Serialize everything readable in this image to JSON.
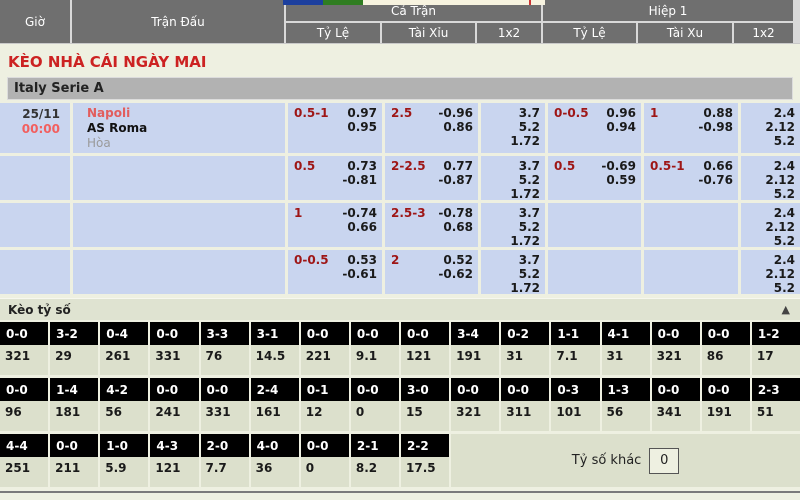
{
  "page_title": "KÈO NHÀ CÁI NGÀY MAI",
  "league": "Italy Serie A",
  "header": {
    "col_time": "Giờ",
    "col_match": "Trận Đấu",
    "group_full": "Cả Trận",
    "group_half": "Hiệp 1",
    "full_subcols": [
      "Tỷ Lệ",
      "Tài Xỉu",
      "1x2"
    ],
    "half_subcols": [
      "Tỷ Lệ",
      "Tài Xu",
      "1x2"
    ]
  },
  "odds_rows": [
    {
      "time_top": "25/11",
      "time_bottom": "00:00",
      "teams": {
        "home": "Napoli",
        "away": "AS Roma",
        "draw": "Hòa"
      },
      "ft_handicap": {
        "hc": "0.5-1",
        "odds": [
          "0.97",
          "0.95"
        ]
      },
      "ft_overunder": {
        "hc": "2.5",
        "odds": [
          "-0.96",
          "0.86"
        ]
      },
      "ft_1x2": [
        "3.7",
        "5.2",
        "1.72"
      ],
      "h1_handicap": {
        "hc": "0-0.5",
        "odds": [
          "0.96",
          "0.94"
        ]
      },
      "h1_overunder": {
        "hc": "1",
        "odds": [
          "0.88",
          "-0.98"
        ]
      },
      "h1_1x2": [
        "2.4",
        "2.12",
        "5.2"
      ]
    },
    {
      "time_top": "",
      "time_bottom": "",
      "teams": null,
      "ft_handicap": {
        "hc": "0.5",
        "odds": [
          "0.73",
          "-0.81"
        ]
      },
      "ft_overunder": {
        "hc": "2-2.5",
        "odds": [
          "0.77",
          "-0.87"
        ]
      },
      "ft_1x2": [
        "3.7",
        "5.2",
        "1.72"
      ],
      "h1_handicap": {
        "hc": "0.5",
        "odds": [
          "-0.69",
          "0.59"
        ]
      },
      "h1_overunder": {
        "hc": "0.5-1",
        "odds": [
          "0.66",
          "-0.76"
        ]
      },
      "h1_1x2": [
        "2.4",
        "2.12",
        "5.2"
      ]
    },
    {
      "time_top": "",
      "time_bottom": "",
      "teams": null,
      "ft_handicap": {
        "hc": "1",
        "odds": [
          "-0.74",
          "0.66"
        ]
      },
      "ft_overunder": {
        "hc": "2.5-3",
        "odds": [
          "-0.78",
          "0.68"
        ]
      },
      "ft_1x2": [
        "3.7",
        "5.2",
        "1.72"
      ],
      "h1_handicap": null,
      "h1_overunder": null,
      "h1_1x2": [
        "2.4",
        "2.12",
        "5.2"
      ]
    },
    {
      "time_top": "",
      "time_bottom": "",
      "teams": null,
      "ft_handicap": {
        "hc": "0-0.5",
        "odds": [
          "0.53",
          "-0.61"
        ]
      },
      "ft_overunder": {
        "hc": "2",
        "odds": [
          "0.52",
          "-0.62"
        ]
      },
      "ft_1x2": [
        "3.7",
        "5.2",
        "1.72"
      ],
      "h1_handicap": null,
      "h1_overunder": null,
      "h1_1x2": [
        "2.4",
        "2.12",
        "5.2"
      ]
    }
  ],
  "score_section": {
    "title": "Kèo tỷ số",
    "collapse_icon": "▲",
    "bands": [
      {
        "scores": [
          "0-0",
          "3-2",
          "0-4",
          "0-0",
          "3-3",
          "3-1",
          "0-0",
          "0-0",
          "0-0",
          "3-4",
          "0-2",
          "1-1",
          "4-1",
          "0-0",
          "0-0",
          "1-2"
        ],
        "odds": [
          "321",
          "29",
          "261",
          "331",
          "76",
          "14.5",
          "221",
          "9.1",
          "121",
          "191",
          "31",
          "7.1",
          "31",
          "321",
          "86",
          "17"
        ]
      },
      {
        "scores": [
          "0-0",
          "1-4",
          "4-2",
          "0-0",
          "0-0",
          "2-4",
          "0-1",
          "0-0",
          "3-0",
          "0-0",
          "0-0",
          "0-3",
          "1-3",
          "0-0",
          "0-0",
          "2-3"
        ],
        "odds": [
          "96",
          "181",
          "56",
          "241",
          "331",
          "161",
          "12",
          "0",
          "15",
          "321",
          "311",
          "101",
          "56",
          "341",
          "191",
          "51"
        ]
      },
      {
        "scores": [
          "4-4",
          "0-0",
          "1-0",
          "4-3",
          "2-0",
          "4-0",
          "0-0",
          "2-1",
          "2-2"
        ],
        "odds": [
          "251",
          "211",
          "5.9",
          "121",
          "7.7",
          "36",
          "0",
          "8.2",
          "17.5"
        ]
      }
    ],
    "other_score": {
      "label": "Tỷ số khác",
      "value": "0"
    }
  },
  "colors": {
    "accent_red": "#cc2222",
    "handicap_red": "#9e1616",
    "time_red": "#f25f5f",
    "home_team_red": "#e25d5d",
    "row_blue": "#c9d5ef",
    "header_gray": "#6f6f6f",
    "league_band_gray": "#b2b2b2",
    "score_cell_black": "#000000",
    "section_green": "#dce0cc",
    "page_bg": "#eef0e1",
    "strip_blue": "#1c3f9e",
    "strip_green": "#2f7d21",
    "strip_cream": "#f7f3df",
    "strip_red": "#cc3333"
  }
}
